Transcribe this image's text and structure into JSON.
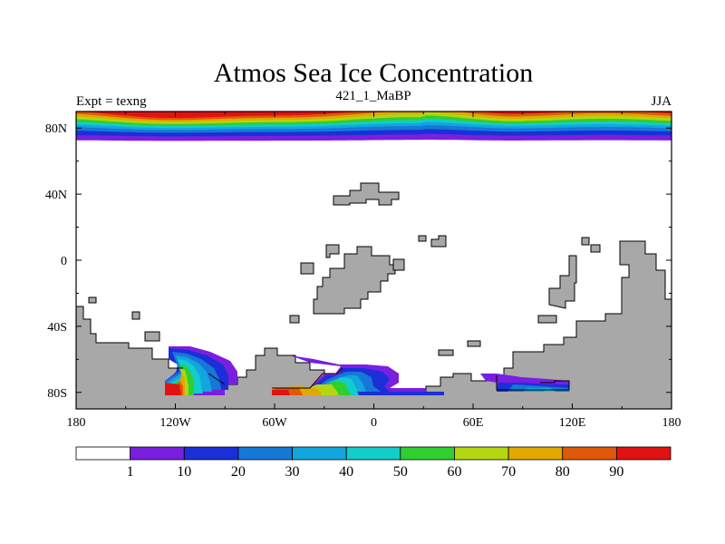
{
  "chart_data": {
    "type": "heatmap",
    "title": "Atmos Sea Ice Concentration",
    "left_label": "Expt = texng",
    "center_label": "421_1_MaBP",
    "right_label": "JJA",
    "x_ticks": [
      "180",
      "120W",
      "60W",
      "0",
      "60E",
      "120E",
      "180"
    ],
    "x_tick_values": [
      -180,
      -120,
      -60,
      0,
      60,
      120,
      180
    ],
    "y_ticks": [
      "80N",
      "40N",
      "0",
      "40S",
      "80S"
    ],
    "y_tick_values": [
      80,
      40,
      0,
      -40,
      -80
    ],
    "xlim": [
      -180,
      180
    ],
    "ylim": [
      -90,
      90
    ],
    "land_color": "#a8a8a8",
    "colorbar": {
      "labels": [
        "1",
        "10",
        "20",
        "30",
        "40",
        "50",
        "60",
        "70",
        "80",
        "90"
      ],
      "bins": [
        0,
        1,
        10,
        20,
        30,
        40,
        50,
        60,
        70,
        80,
        90
      ],
      "colors": [
        "#ffffff",
        "#7a1fe0",
        "#1a2fd8",
        "#1677d6",
        "#12a6df",
        "#13cccc",
        "#2fcf2f",
        "#b2d611",
        "#e0a800",
        "#e05808",
        "#e11212"
      ]
    },
    "arctic_ice": {
      "description_bands_from_pole": [
        90,
        80,
        70,
        60,
        50,
        40,
        30,
        20,
        10,
        1
      ],
      "band_edge_lat": [
        89,
        87.5,
        86,
        84.5,
        83,
        81.5,
        80,
        78,
        75.5,
        72.5
      ],
      "southern_edge_lat_min": 66
    },
    "antarctic_ice_patches": [
      {
        "region": "pacific_sector",
        "lon_range": [
          -130,
          -85
        ],
        "max_value": 90
      },
      {
        "region": "weddell_sea",
        "lon_range": [
          -60,
          5
        ],
        "max_value": 90
      },
      {
        "region": "east_antarctic",
        "lon_range": [
          75,
          110
        ],
        "max_value": 50
      }
    ]
  }
}
